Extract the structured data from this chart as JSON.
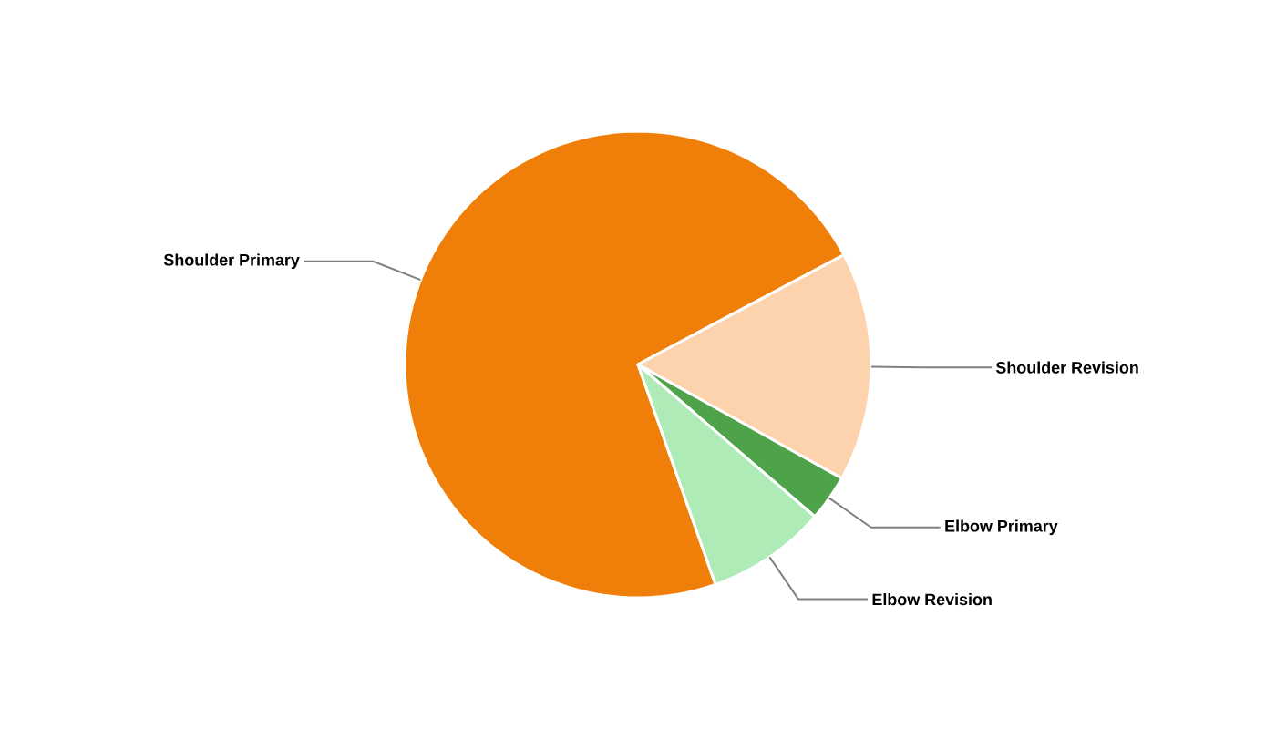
{
  "chart_data": {
    "type": "pie",
    "categories": [
      "Shoulder Primary",
      "Shoulder Revision",
      "Elbow Primary",
      "Elbow Revision"
    ],
    "values": [
      72.6,
      15.9,
      3.2,
      8.3
    ],
    "colors": [
      "#f07f09",
      "#fcd3ad",
      "#4ea24a",
      "#afebb7"
    ],
    "legend": false
  }
}
